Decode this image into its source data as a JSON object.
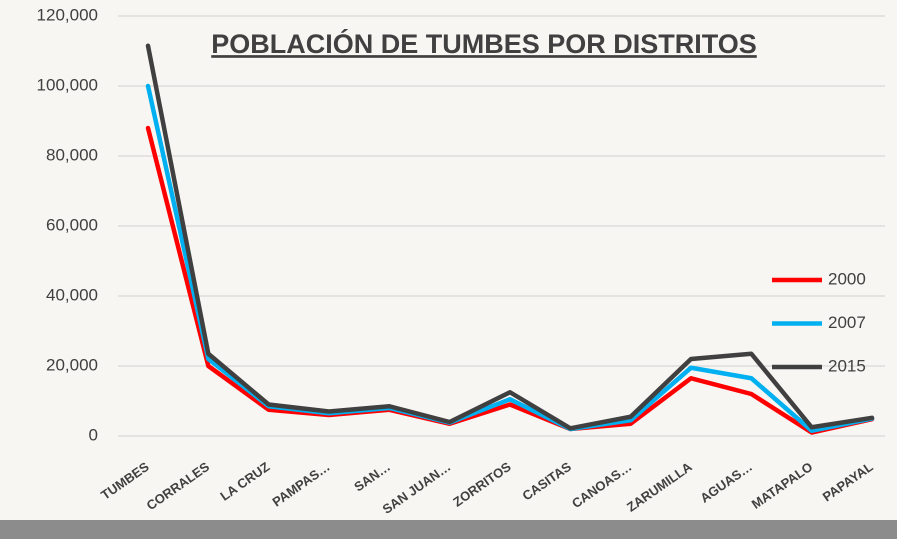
{
  "chart_data": {
    "type": "line",
    "title": "POBLACIÓN DE TUMBES POR DISTRITOS",
    "categories": [
      "TUMBES",
      "CORRALES",
      "LA CRUZ",
      "PAMPAS…",
      "SAN…",
      "SAN JUAN…",
      "ZORRITOS",
      "CASITAS",
      "CANOAS…",
      "ZARUMILLA",
      "AGUAS…",
      "MATAPALO",
      "PAPAYAL"
    ],
    "series": [
      {
        "name": "2000",
        "color": "#ff0000",
        "values": [
          88000,
          20000,
          7500,
          6000,
          7500,
          3500,
          9000,
          2000,
          3500,
          16500,
          12000,
          1000,
          4800
        ]
      },
      {
        "name": "2007",
        "color": "#00b0f0",
        "values": [
          100000,
          22000,
          8500,
          6500,
          8000,
          3800,
          10500,
          2000,
          4500,
          19500,
          16500,
          1500,
          5000
        ]
      },
      {
        "name": "2015",
        "color": "#404040",
        "values": [
          111500,
          23500,
          9000,
          7000,
          8500,
          4000,
          12500,
          2200,
          5500,
          22000,
          23500,
          2500,
          5200
        ]
      }
    ],
    "ylim": [
      0,
      120000
    ],
    "yticks": [
      0,
      {
        "value": 20000,
        "label": "20,000"
      },
      {
        "value": 40000,
        "label": "40,000"
      },
      {
        "value": 60000,
        "label": "60,000"
      },
      {
        "value": 80000,
        "label": "80,000"
      },
      {
        "value": 100000,
        "label": "100,000"
      },
      {
        "value": 120000,
        "label": "120,000"
      }
    ],
    "grid": true,
    "legend": "right"
  }
}
